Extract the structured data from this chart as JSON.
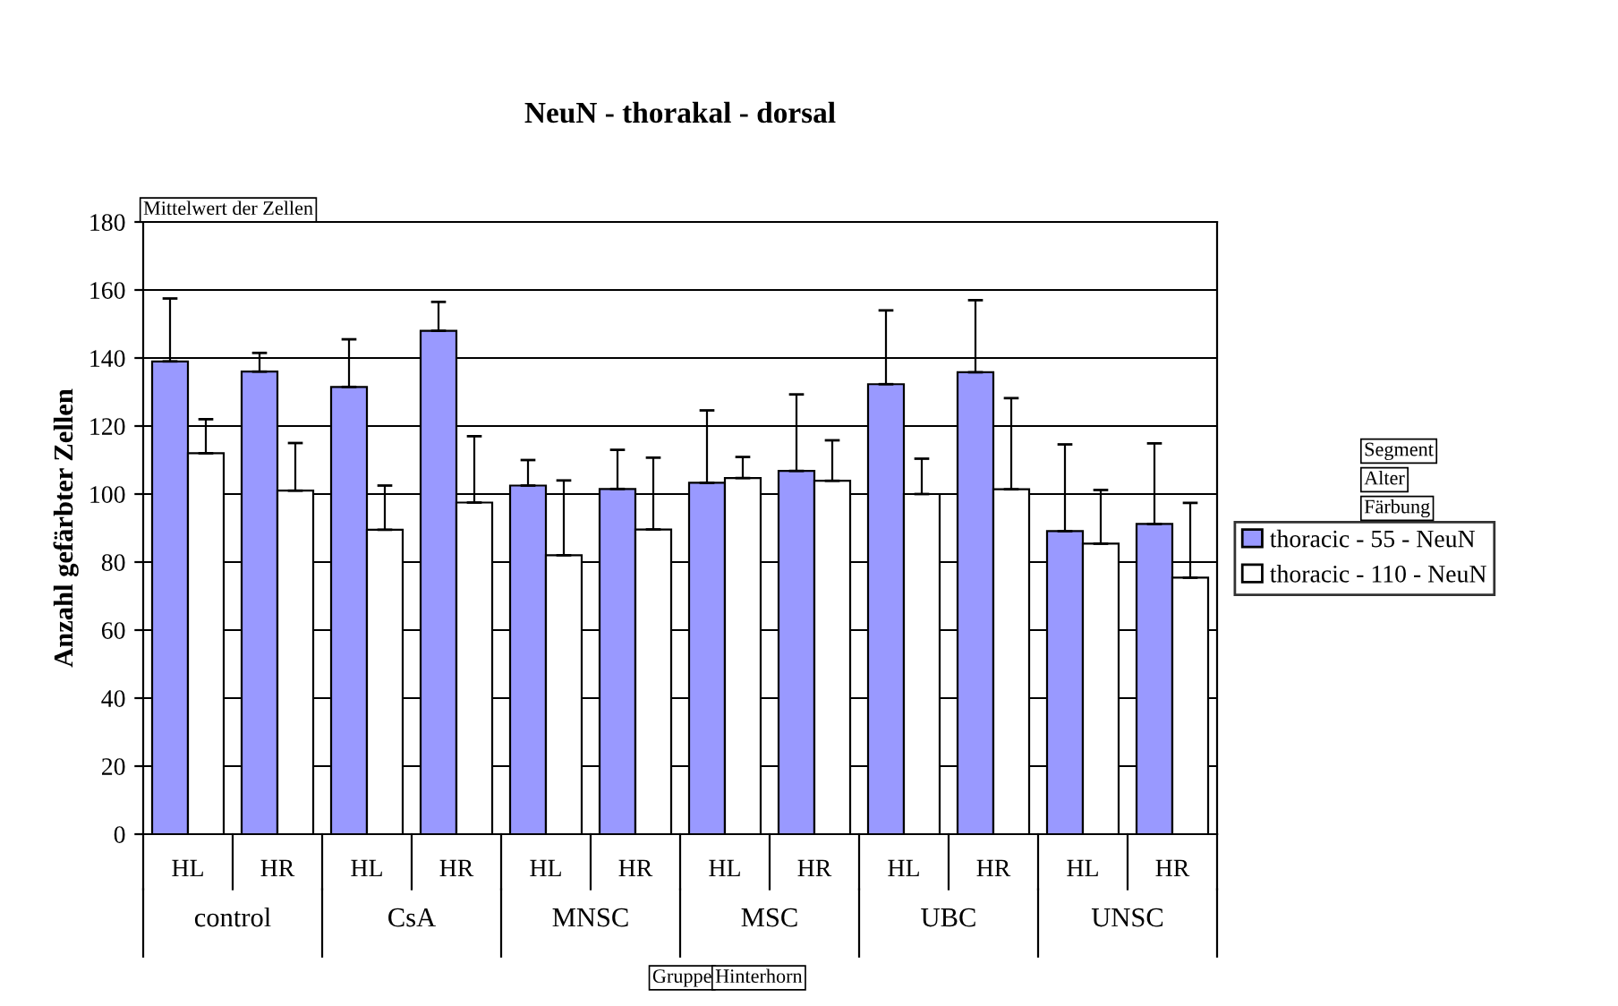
{
  "chart_data": {
    "type": "bar",
    "title": "NeuN - thorakal - dorsal",
    "ylabel": "Anzahl gefärbter Zellen",
    "categories": [
      "HL",
      "HR",
      "HL",
      "HR",
      "HL",
      "HR",
      "HL",
      "HR",
      "HL",
      "HR",
      "HL",
      "HR"
    ],
    "series": [
      {
        "name": "thoracic - 55 - NeuN",
        "color": "#9999ff",
        "values": [
          139,
          136,
          131.5,
          148,
          102.5,
          101.5,
          103.3,
          106.8,
          132.3,
          135.8,
          89.1,
          91.2
        ],
        "errors": [
          [
            139,
            157.5
          ],
          [
            136,
            141.5
          ],
          [
            131.5,
            145.5
          ],
          [
            148,
            156.5
          ],
          [
            102.5,
            110
          ],
          [
            101.5,
            113
          ],
          [
            103.3,
            124.6
          ],
          [
            106.8,
            129.3
          ],
          [
            132.3,
            154
          ],
          [
            135.8,
            157
          ],
          [
            89.1,
            114.6
          ],
          [
            91.2,
            114.9
          ]
        ]
      },
      {
        "name": "thoracic - 110 - NeuN",
        "color": "#ffffff",
        "values": [
          112,
          101,
          89.5,
          97.5,
          82,
          89.6,
          104.7,
          103.9,
          100,
          101.4,
          85.4,
          75.4
        ],
        "errors": [
          [
            112,
            122
          ],
          [
            101,
            115
          ],
          [
            89.5,
            102.5
          ],
          [
            97.5,
            117
          ],
          [
            82,
            104
          ],
          [
            89.6,
            110.7
          ],
          [
            104.7,
            110.9
          ],
          [
            103.9,
            115.8
          ],
          [
            100,
            110.4
          ],
          [
            101.4,
            128.2
          ],
          [
            85.4,
            101.2
          ],
          [
            75.4,
            97.4
          ]
        ]
      }
    ],
    "ylim": [
      0,
      180
    ],
    "yticks": [
      0,
      20,
      40,
      60,
      80,
      100,
      120,
      140,
      160,
      180
    ],
    "grid": "y",
    "legend": "right",
    "annotations": [
      "control",
      "CsA",
      "MNSC",
      "MSC",
      "UBC",
      "UNSC",
      "Mittelwert der Zellen",
      "Gruppe",
      "Hinterhorn",
      "Segment",
      "Alter",
      "Färbung"
    ]
  }
}
